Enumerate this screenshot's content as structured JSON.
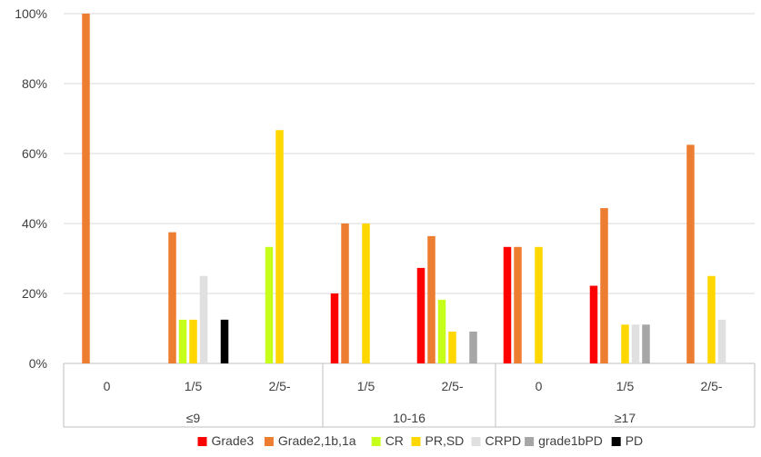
{
  "chart_data": {
    "type": "bar",
    "title": "",
    "xlabel": "",
    "ylabel": "",
    "ylim": [
      0,
      100
    ],
    "y_ticks": [
      "0%",
      "20%",
      "40%",
      "60%",
      "80%",
      "100%"
    ],
    "y_tick_values": [
      0,
      20,
      40,
      60,
      80,
      100
    ],
    "grid": true,
    "legend_position": "bottom",
    "groups": [
      {
        "label": "≤9",
        "categories": [
          "0",
          "1/5",
          "2/5-"
        ]
      },
      {
        "label": "10-16",
        "categories": [
          "1/5",
          "2/5-"
        ]
      },
      {
        "label": "≥17",
        "categories": [
          "0",
          "1/5",
          "2/5-"
        ]
      }
    ],
    "categories": [
      "0",
      "1/5",
      "2/5-",
      "1/5",
      "2/5-",
      "0",
      "1/5",
      "2/5-"
    ],
    "series": [
      {
        "name": "Grade3",
        "color": "#ff0000",
        "values": [
          0,
          0,
          0,
          20,
          27.3,
          33.3,
          22.2,
          0
        ]
      },
      {
        "name": "Grade2,1b,1a",
        "color": "#ed7d31",
        "values": [
          100,
          37.5,
          0,
          40,
          36.4,
          33.3,
          44.4,
          62.5
        ]
      },
      {
        "name": "CR",
        "color": "#c6ff1a",
        "values": [
          0,
          12.5,
          33.3,
          0,
          18.2,
          0,
          0,
          0
        ]
      },
      {
        "name": "PR,SD",
        "color": "#ffd700",
        "values": [
          0,
          12.5,
          66.7,
          40,
          9.1,
          33.3,
          11.1,
          25
        ]
      },
      {
        "name": "CRPD",
        "color": "#e0e0e0",
        "values": [
          0,
          25,
          0,
          0,
          0,
          0,
          11.1,
          12.5
        ]
      },
      {
        "name": "grade1bPD",
        "color": "#a6a6a6",
        "values": [
          0,
          0,
          0,
          0,
          9.1,
          0,
          11.1,
          0
        ]
      },
      {
        "name": "PD",
        "color": "#000000",
        "values": [
          0,
          12.5,
          0,
          0,
          0,
          0,
          0,
          0
        ]
      }
    ]
  }
}
